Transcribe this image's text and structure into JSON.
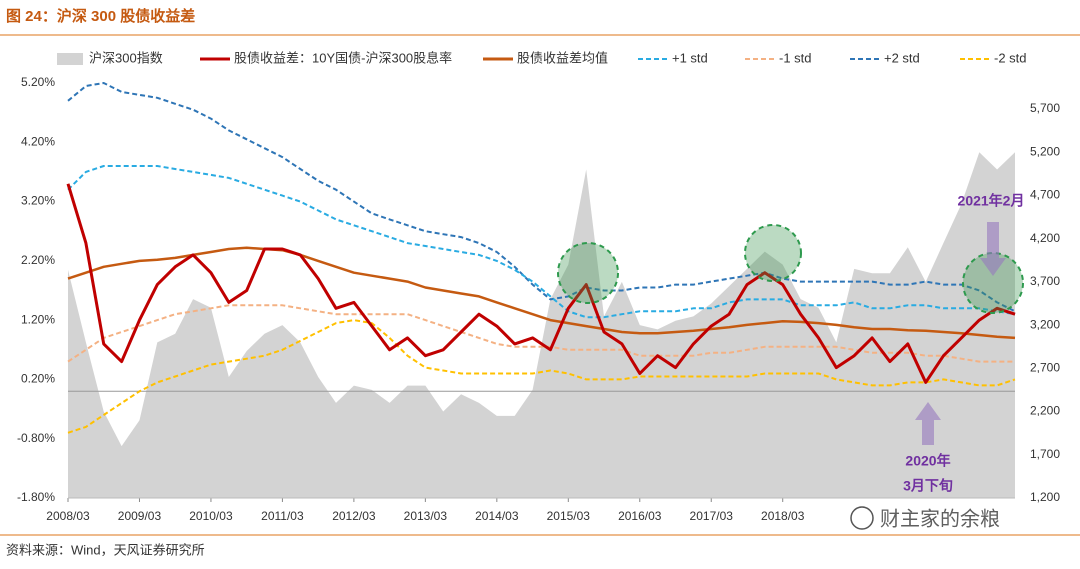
{
  "chart_data": {
    "type": "line",
    "title": "图 24：沪深 300 股债收益差",
    "source": "资料来源：Wind，天风证券研究所",
    "watermark": "财主家的余粮",
    "annotations": [
      "2021年2月",
      "2020年",
      "3月下旬"
    ],
    "x": [
      "2008/03",
      "2008/06",
      "2008/09",
      "2008/12",
      "2009/03",
      "2009/06",
      "2009/09",
      "2009/12",
      "2010/03",
      "2010/06",
      "2010/09",
      "2010/12",
      "2011/03",
      "2011/06",
      "2011/09",
      "2011/12",
      "2012/03",
      "2012/06",
      "2012/09",
      "2012/12",
      "2013/03",
      "2013/06",
      "2013/09",
      "2013/12",
      "2014/03",
      "2014/06",
      "2014/09",
      "2014/12",
      "2015/03",
      "2015/06",
      "2015/09",
      "2015/12",
      "2016/03",
      "2016/06",
      "2016/09",
      "2016/12",
      "2017/03",
      "2017/06",
      "2017/09",
      "2017/12",
      "2018/03",
      "2018/06",
      "2018/09",
      "2018/12",
      "2019/03",
      "2019/06",
      "2019/09",
      "2019/12",
      "2020/03",
      "2020/06",
      "2020/09",
      "2020/12",
      "2021/03",
      "2021/06"
    ],
    "xlim": [
      "2008/03",
      "2021/06"
    ],
    "xticks": [
      "2008/03",
      "2009/03",
      "2010/03",
      "2011/03",
      "2012/03",
      "2013/03",
      "2014/03",
      "2015/03",
      "2016/03",
      "2017/03",
      "2018/03"
    ],
    "ylim": [
      -1.8,
      5.2
    ],
    "yticks": [
      {
        "value": -1.8,
        "label": "-1.80%"
      },
      {
        "value": -0.8,
        "label": "-0.80%"
      },
      {
        "value": 0.2,
        "label": "0.20%"
      },
      {
        "value": 1.2,
        "label": "1.20%"
      },
      {
        "value": 2.2,
        "label": "2.20%"
      },
      {
        "value": 3.2,
        "label": "3.20%"
      },
      {
        "value": 4.2,
        "label": "4.20%"
      },
      {
        "value": 5.2,
        "label": "5.20%"
      }
    ],
    "y2lim": [
      1200,
      6000
    ],
    "y2ticks": [
      {
        "value": 1200,
        "label": "1,200"
      },
      {
        "value": 1700,
        "label": "1,700"
      },
      {
        "value": 2200,
        "label": "2,200"
      },
      {
        "value": 2700,
        "label": "2,700"
      },
      {
        "value": 3200,
        "label": "3,200"
      },
      {
        "value": 3700,
        "label": "3,700"
      },
      {
        "value": 4200,
        "label": "4,200"
      },
      {
        "value": 4700,
        "label": "4,700"
      },
      {
        "value": 5200,
        "label": "5,200"
      },
      {
        "value": 5700,
        "label": "5,700"
      }
    ],
    "series": [
      {
        "name": "沪深300指数",
        "color": "#d3d3d3",
        "style": "area",
        "axis": "y2",
        "values": [
          3838,
          3000,
          2200,
          1800,
          2100,
          3000,
          3100,
          3500,
          3400,
          2600,
          2900,
          3100,
          3200,
          3000,
          2600,
          2300,
          2500,
          2450,
          2300,
          2500,
          2500,
          2200,
          2400,
          2300,
          2150,
          2150,
          2450,
          3500,
          3900,
          5000,
          3300,
          3700,
          3200,
          3150,
          3250,
          3300,
          3450,
          3650,
          3850,
          4050,
          3900,
          3500,
          3400,
          3000,
          3850,
          3800,
          3800,
          4100,
          3700,
          4150,
          4600,
          5200,
          5000,
          5200
        ]
      },
      {
        "name": "股债收益差：10Y国债-沪深300股息率",
        "color": "#c00000",
        "style": "line",
        "values": [
          3.5,
          2.5,
          0.8,
          0.5,
          1.2,
          1.8,
          2.1,
          2.3,
          2.0,
          1.5,
          1.7,
          2.4,
          2.4,
          2.3,
          1.9,
          1.4,
          1.5,
          1.1,
          0.7,
          0.9,
          0.6,
          0.7,
          1.0,
          1.3,
          1.1,
          0.8,
          0.9,
          0.7,
          1.4,
          1.8,
          1.0,
          0.8,
          0.3,
          0.6,
          0.4,
          0.8,
          1.1,
          1.3,
          1.8,
          2.0,
          1.8,
          1.3,
          0.9,
          0.4,
          0.6,
          0.9,
          0.5,
          0.8,
          0.15,
          0.6,
          0.9,
          1.2,
          1.4,
          1.3
        ]
      },
      {
        "name": "股债收益差均值",
        "color": "#c55a11",
        "style": "line",
        "values": [
          1.9,
          2.0,
          2.1,
          2.15,
          2.2,
          2.22,
          2.25,
          2.3,
          2.35,
          2.4,
          2.42,
          2.4,
          2.38,
          2.3,
          2.2,
          2.1,
          2.0,
          1.95,
          1.9,
          1.85,
          1.75,
          1.7,
          1.65,
          1.6,
          1.5,
          1.4,
          1.3,
          1.2,
          1.15,
          1.1,
          1.05,
          1.0,
          0.98,
          0.98,
          1.0,
          1.02,
          1.05,
          1.08,
          1.12,
          1.15,
          1.18,
          1.17,
          1.15,
          1.12,
          1.08,
          1.05,
          1.05,
          1.03,
          1.02,
          1.0,
          0.98,
          0.95,
          0.92,
          0.9
        ]
      },
      {
        "name": "+1 std",
        "color": "#29abe2",
        "style": "dash",
        "values": [
          3.4,
          3.7,
          3.8,
          3.8,
          3.8,
          3.8,
          3.75,
          3.7,
          3.65,
          3.6,
          3.5,
          3.4,
          3.3,
          3.2,
          3.05,
          2.9,
          2.8,
          2.7,
          2.6,
          2.5,
          2.45,
          2.4,
          2.35,
          2.3,
          2.2,
          2.05,
          1.85,
          1.6,
          1.35,
          1.25,
          1.25,
          1.3,
          1.35,
          1.35,
          1.35,
          1.4,
          1.4,
          1.5,
          1.55,
          1.55,
          1.55,
          1.45,
          1.45,
          1.45,
          1.5,
          1.4,
          1.4,
          1.45,
          1.45,
          1.4,
          1.4,
          1.4,
          1.35,
          1.3
        ]
      },
      {
        "name": "-1 std",
        "color": "#f4b183",
        "style": "dash",
        "values": [
          0.5,
          0.7,
          0.9,
          1.0,
          1.1,
          1.2,
          1.3,
          1.35,
          1.4,
          1.45,
          1.45,
          1.45,
          1.45,
          1.4,
          1.35,
          1.3,
          1.3,
          1.3,
          1.3,
          1.3,
          1.2,
          1.1,
          1.0,
          0.9,
          0.8,
          0.75,
          0.75,
          0.75,
          0.7,
          0.7,
          0.7,
          0.7,
          0.6,
          0.6,
          0.6,
          0.6,
          0.65,
          0.65,
          0.7,
          0.75,
          0.75,
          0.75,
          0.75,
          0.75,
          0.7,
          0.65,
          0.65,
          0.65,
          0.6,
          0.6,
          0.55,
          0.5,
          0.5,
          0.5
        ]
      },
      {
        "name": "+2 std",
        "color": "#2e75b6",
        "style": "dash",
        "values": [
          4.9,
          5.15,
          5.2,
          5.05,
          5.0,
          4.95,
          4.85,
          4.75,
          4.6,
          4.4,
          4.25,
          4.1,
          3.95,
          3.75,
          3.55,
          3.4,
          3.2,
          3.0,
          2.9,
          2.8,
          2.7,
          2.65,
          2.6,
          2.5,
          2.35,
          2.1,
          1.8,
          1.55,
          1.6,
          1.75,
          1.7,
          1.7,
          1.75,
          1.75,
          1.8,
          1.8,
          1.85,
          1.9,
          1.95,
          2.0,
          1.9,
          1.85,
          1.85,
          1.85,
          1.85,
          1.85,
          1.8,
          1.8,
          1.85,
          1.8,
          1.8,
          1.7,
          1.5,
          1.35
        ]
      },
      {
        "name": "-2 std",
        "color": "#ffc000",
        "style": "dash",
        "values": [
          -0.7,
          -0.6,
          -0.4,
          -0.2,
          0,
          0.15,
          0.25,
          0.35,
          0.45,
          0.5,
          0.55,
          0.6,
          0.7,
          0.85,
          1.0,
          1.15,
          1.2,
          1.15,
          0.9,
          0.6,
          0.4,
          0.35,
          0.3,
          0.3,
          0.3,
          0.3,
          0.3,
          0.35,
          0.3,
          0.2,
          0.2,
          0.2,
          0.25,
          0.25,
          0.25,
          0.25,
          0.25,
          0.25,
          0.25,
          0.3,
          0.3,
          0.3,
          0.3,
          0.2,
          0.15,
          0.1,
          0.1,
          0.15,
          0.15,
          0.2,
          0.15,
          0.1,
          0.1,
          0.2
        ]
      }
    ]
  }
}
